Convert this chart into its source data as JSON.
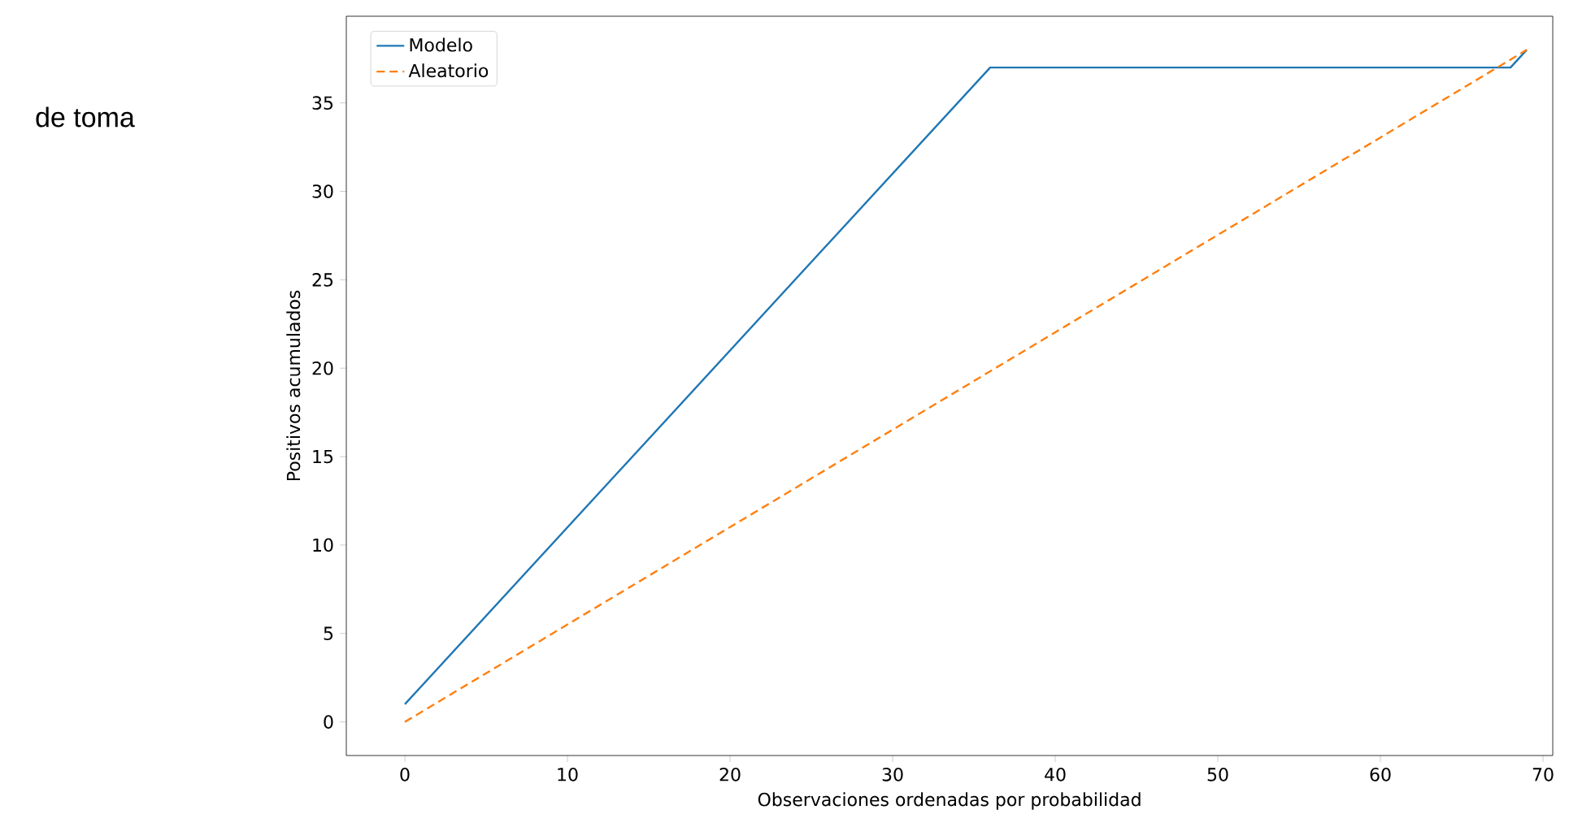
{
  "chart_data": {
    "type": "line",
    "xlabel": "Observaciones ordenadas por probabilidad",
    "ylabel": "Positivos acumulados",
    "annotations": [
      "de  toma"
    ],
    "series": [
      {
        "name": "Modelo",
        "color": "#1f77b4",
        "line_style": "solid",
        "x": [
          0,
          36,
          68,
          69
        ],
        "values": [
          1,
          37,
          37,
          38
        ]
      },
      {
        "name": "Aleatorio",
        "color": "#ff7f0e",
        "line_style": "dashed",
        "x": [
          0,
          69
        ],
        "values": [
          0,
          38
        ]
      }
    ],
    "xlim": [
      -3.6,
      70.6
    ],
    "ylim": [
      -1.9,
      39.9
    ],
    "xticks": [
      0,
      10,
      20,
      30,
      40,
      50,
      60,
      70
    ],
    "yticks": [
      0,
      5,
      10,
      15,
      20,
      25,
      30,
      35
    ],
    "grid": false,
    "legend": "top left",
    "marker": "none"
  }
}
